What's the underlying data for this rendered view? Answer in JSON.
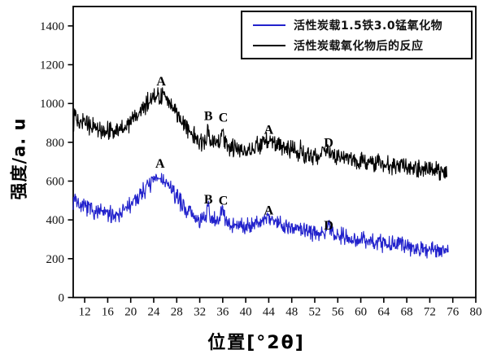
{
  "figure": {
    "background": "#ffffff",
    "axis_color": "#000000",
    "tick_label_color": "#111111"
  },
  "legend": {
    "position": "top-right",
    "entries": [
      {
        "label": "活性炭载1.5铁3.0锰氧化物",
        "color": "#2222cc"
      },
      {
        "label": "活性炭载氧化物后的反应",
        "color": "#000000"
      }
    ]
  },
  "chart_data": {
    "type": "line",
    "title": "",
    "xlabel": "位置[°2θ]",
    "ylabel": "强度/a. u",
    "xlim": [
      10,
      80
    ],
    "ylim": [
      0,
      1500
    ],
    "x_ticks": [
      12,
      16,
      20,
      24,
      28,
      32,
      36,
      40,
      44,
      48,
      52,
      56,
      60,
      64,
      68,
      72,
      76,
      80
    ],
    "y_ticks": [
      0,
      200,
      400,
      600,
      800,
      1000,
      1200,
      1400
    ],
    "grid": false,
    "legend_position": "top-right",
    "series": [
      {
        "name": "活性炭载氧化物后的反应",
        "color": "#000000",
        "x_range": [
          10,
          75.0
        ],
        "noise_amplitude": 56,
        "seed": 13,
        "anchors": [
          [
            10,
            940
          ],
          [
            10.4,
            955
          ],
          [
            11,
            915
          ],
          [
            12,
            898
          ],
          [
            13,
            882
          ],
          [
            14,
            872
          ],
          [
            15,
            863
          ],
          [
            16,
            857
          ],
          [
            17,
            855
          ],
          [
            18,
            864
          ],
          [
            19,
            880
          ],
          [
            20,
            905
          ],
          [
            21,
            940
          ],
          [
            22,
            975
          ],
          [
            23,
            1010
          ],
          [
            24,
            1035
          ],
          [
            24.7,
            1047
          ],
          [
            25.6,
            1038
          ],
          [
            26.5,
            1008
          ],
          [
            27.5,
            968
          ],
          [
            28.5,
            928
          ],
          [
            29.5,
            888
          ],
          [
            30.5,
            848
          ],
          [
            31.5,
            815
          ],
          [
            32.5,
            798
          ],
          [
            33.1,
            805
          ],
          [
            33.45,
            885
          ],
          [
            33.8,
            805
          ],
          [
            34.6,
            790
          ],
          [
            35.3,
            790
          ],
          [
            35.85,
            888
          ],
          [
            36.4,
            792
          ],
          [
            37.5,
            775
          ],
          [
            38.5,
            766
          ],
          [
            39.5,
            762
          ],
          [
            40.5,
            765
          ],
          [
            41.5,
            772
          ],
          [
            42.5,
            785
          ],
          [
            43.5,
            800
          ],
          [
            44.1,
            806
          ],
          [
            44.9,
            797
          ],
          [
            45.8,
            785
          ],
          [
            47,
            770
          ],
          [
            48.5,
            756
          ],
          [
            50,
            743
          ],
          [
            51.5,
            734
          ],
          [
            53,
            736
          ],
          [
            54.3,
            762
          ],
          [
            55.1,
            737
          ],
          [
            56,
            726
          ],
          [
            57.5,
            716
          ],
          [
            59,
            707
          ],
          [
            61,
            697
          ],
          [
            63,
            688
          ],
          [
            65,
            680
          ],
          [
            67,
            674
          ],
          [
            69,
            668
          ],
          [
            71,
            662
          ],
          [
            73,
            658
          ],
          [
            75,
            654
          ]
        ],
        "peak_labels": [
          {
            "text": "A",
            "x": 25.3,
            "y": 1115
          },
          {
            "text": "B",
            "x": 33.5,
            "y": 935
          },
          {
            "text": "C",
            "x": 36.1,
            "y": 928
          },
          {
            "text": "A",
            "x": 44.0,
            "y": 865
          },
          {
            "text": "D",
            "x": 54.4,
            "y": 798
          }
        ]
      },
      {
        "name": "活性炭载1.5铁3.0锰氧化物",
        "color": "#2222cc",
        "x_range": [
          10,
          75.2
        ],
        "noise_amplitude": 52,
        "seed": 7,
        "anchors": [
          [
            10,
            500
          ],
          [
            10.3,
            520
          ],
          [
            11,
            472
          ],
          [
            12,
            462
          ],
          [
            13,
            452
          ],
          [
            14,
            445
          ],
          [
            15,
            438
          ],
          [
            16,
            430
          ],
          [
            17,
            428
          ],
          [
            18,
            438
          ],
          [
            19,
            452
          ],
          [
            20,
            478
          ],
          [
            21,
            508
          ],
          [
            22,
            545
          ],
          [
            23,
            578
          ],
          [
            24,
            602
          ],
          [
            24.8,
            615
          ],
          [
            25.6,
            605
          ],
          [
            26.5,
            578
          ],
          [
            27.5,
            540
          ],
          [
            28.5,
            500
          ],
          [
            29.5,
            462
          ],
          [
            30.5,
            430
          ],
          [
            31.5,
            405
          ],
          [
            32.5,
            396
          ],
          [
            33.1,
            402
          ],
          [
            33.45,
            492
          ],
          [
            33.8,
            405
          ],
          [
            34.6,
            395
          ],
          [
            35.3,
            398
          ],
          [
            35.85,
            458
          ],
          [
            36.4,
            395
          ],
          [
            37.5,
            380
          ],
          [
            38.5,
            373
          ],
          [
            39.5,
            370
          ],
          [
            40.5,
            373
          ],
          [
            41.5,
            380
          ],
          [
            42.5,
            393
          ],
          [
            43.5,
            410
          ],
          [
            44.1,
            416
          ],
          [
            44.9,
            403
          ],
          [
            45.8,
            388
          ],
          [
            47,
            371
          ],
          [
            48.5,
            357
          ],
          [
            50,
            344
          ],
          [
            51.5,
            335
          ],
          [
            53,
            337
          ],
          [
            54.3,
            360
          ],
          [
            55.1,
            337
          ],
          [
            56,
            324
          ],
          [
            57.5,
            314
          ],
          [
            59,
            304
          ],
          [
            61,
            294
          ],
          [
            63,
            284
          ],
          [
            65,
            275
          ],
          [
            67,
            267
          ],
          [
            69,
            261
          ],
          [
            71,
            255
          ],
          [
            73,
            249
          ],
          [
            75.2,
            245
          ]
        ],
        "peak_labels": [
          {
            "text": "A",
            "x": 25.1,
            "y": 690
          },
          {
            "text": "B",
            "x": 33.5,
            "y": 505
          },
          {
            "text": "C",
            "x": 36.1,
            "y": 500
          },
          {
            "text": "A",
            "x": 44.0,
            "y": 450
          },
          {
            "text": "D",
            "x": 54.4,
            "y": 372
          }
        ]
      }
    ]
  }
}
